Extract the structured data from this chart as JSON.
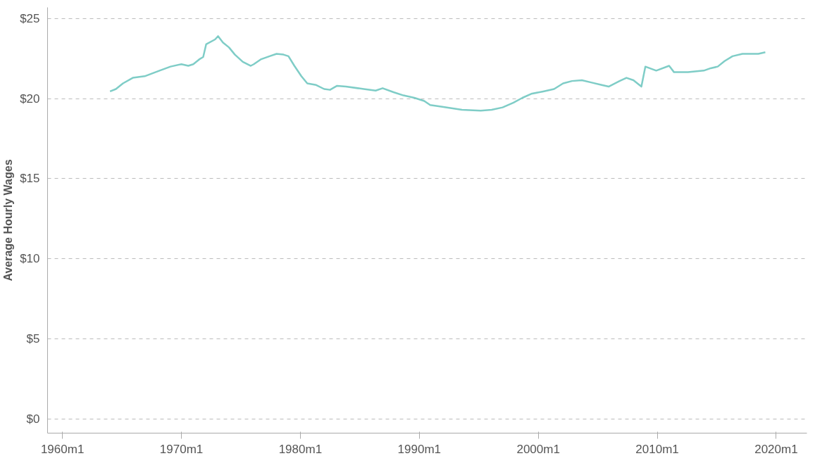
{
  "chart_data": {
    "type": "line",
    "ylabel": "Average Hourly Wages",
    "xlim": [
      "1958-10",
      "2022-08"
    ],
    "ylim": [
      -0.9,
      25.7
    ],
    "xticks": [
      {
        "value": "1960-01",
        "label": "1960m1"
      },
      {
        "value": "1970-01",
        "label": "1970m1"
      },
      {
        "value": "1980-01",
        "label": "1980m1"
      },
      {
        "value": "1990-01",
        "label": "1990m1"
      },
      {
        "value": "2000-01",
        "label": "2000m1"
      },
      {
        "value": "2010-01",
        "label": "2010m1"
      },
      {
        "value": "2020-01",
        "label": "2020m1"
      }
    ],
    "yticks": [
      {
        "value": 0,
        "label": "$0"
      },
      {
        "value": 5,
        "label": "$5"
      },
      {
        "value": 10,
        "label": "$10"
      },
      {
        "value": 15,
        "label": "$15"
      },
      {
        "value": 20,
        "label": "$20"
      },
      {
        "value": 25,
        "label": "$25"
      }
    ],
    "grid": "y",
    "line_style": "solid",
    "series": [
      {
        "color": "#7fcdc7",
        "x": [
          "1964-01",
          "1964-07",
          "1965-02",
          "1965-12",
          "1966-12",
          "1968-03",
          "1969-02",
          "1970-01",
          "1970-08",
          "1971-01",
          "1971-07",
          "1971-11",
          "1972-02",
          "1972-11",
          "1973-02",
          "1973-07",
          "1974-01",
          "1974-07",
          "1975-03",
          "1975-11",
          "1976-02",
          "1976-09",
          "1977-06",
          "1978-01",
          "1978-08",
          "1979-01",
          "1979-07",
          "1980-02",
          "1980-08",
          "1981-05",
          "1982-01",
          "1982-07",
          "1983-02",
          "1983-11",
          "1985-05",
          "1986-05",
          "1986-12",
          "1987-11",
          "1988-09",
          "1989-08",
          "1990-06",
          "1990-12",
          "1991-11",
          "1993-08",
          "1995-03",
          "1996-02",
          "1997-01",
          "1997-12",
          "1998-09",
          "1999-06",
          "2000-06",
          "2001-05",
          "2002-02",
          "2002-11",
          "2003-09",
          "2004-07",
          "2005-05",
          "2005-12",
          "2006-11",
          "2007-06",
          "2008-01",
          "2008-09",
          "2009-01",
          "2009-12",
          "2011-01",
          "2011-06",
          "2012-08",
          "2013-12",
          "2014-07",
          "2015-02",
          "2015-09",
          "2016-05",
          "2017-03",
          "2018-07",
          "2019-02"
        ],
        "values": [
          20.45,
          20.6,
          20.95,
          21.3,
          21.4,
          21.75,
          22.0,
          22.15,
          22.05,
          22.15,
          22.45,
          22.6,
          23.4,
          23.7,
          23.9,
          23.5,
          23.2,
          22.75,
          22.3,
          22.05,
          22.15,
          22.45,
          22.65,
          22.8,
          22.75,
          22.65,
          22.05,
          21.4,
          20.95,
          20.85,
          20.6,
          20.55,
          20.8,
          20.75,
          20.6,
          20.5,
          20.65,
          20.4,
          20.2,
          20.05,
          19.85,
          19.6,
          19.5,
          19.3,
          19.25,
          19.3,
          19.45,
          19.75,
          20.05,
          20.3,
          20.45,
          20.6,
          20.95,
          21.1,
          21.15,
          21.0,
          20.85,
          20.75,
          21.1,
          21.3,
          21.15,
          20.75,
          22.0,
          21.75,
          22.05,
          21.65,
          21.65,
          21.75,
          21.9,
          22.0,
          22.35,
          22.65,
          22.8,
          22.8,
          22.9
        ]
      }
    ]
  }
}
